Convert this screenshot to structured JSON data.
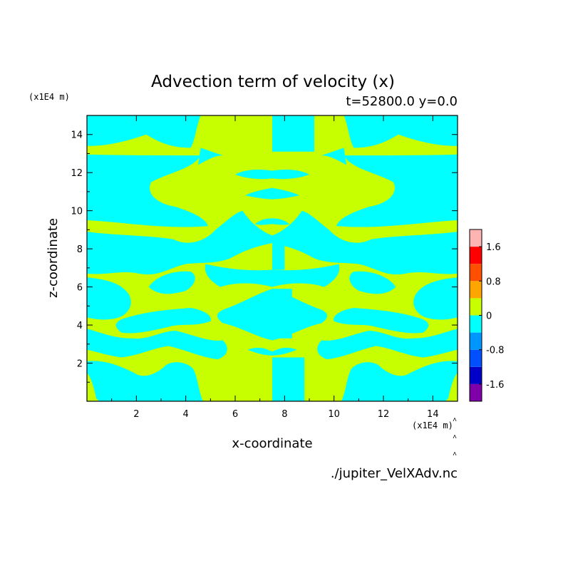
{
  "chart_data": {
    "type": "heatmap",
    "title": "Advection term of velocity (x)",
    "subtitle": "t=52800.0 y=0.0",
    "xlabel": "x-coordinate",
    "ylabel": "z-coordinate",
    "x_unit": "(x1E4 m)",
    "y_unit": "(x1E4 m)",
    "xlim": [
      0,
      15
    ],
    "ylim": [
      0,
      15
    ],
    "x_ticks": [
      2,
      4,
      6,
      8,
      10,
      12,
      14
    ],
    "y_ticks": [
      2,
      4,
      6,
      8,
      10,
      12,
      14
    ],
    "colorbar": {
      "levels": [
        -2.0,
        -1.6,
        -1.2,
        -0.8,
        -0.4,
        0,
        0.4,
        0.8,
        1.2,
        1.6,
        2.0
      ],
      "tick_labels": [
        "-1.6",
        "-0.8",
        "0",
        "0.8",
        "1.6"
      ],
      "tick_values": [
        -1.6,
        -0.8,
        0,
        0.8,
        1.6
      ],
      "colors": [
        "#7f00a8",
        "#0000c8",
        "#0050ff",
        "#0096ff",
        "#00ffff",
        "#c8ff00",
        "#ffa500",
        "#ff5000",
        "#ff0000",
        "#ffb4b4"
      ]
    },
    "field_colors": {
      "negative": "#00ffff",
      "positive": "#c8ff00"
    },
    "symmetry": "mirror about x=7.5"
  },
  "footer": {
    "filename": "./jupiter_VelXAdv.nc"
  }
}
